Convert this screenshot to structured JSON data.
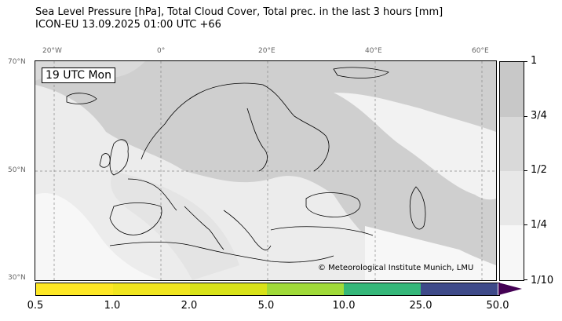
{
  "title": {
    "line1": "Sea Level Pressure [hPa], Total Cloud Cover, Total prec. in the last 3 hours [mm]",
    "line2": "ICON-EU 13.09.2025 01:00 UTC +66"
  },
  "map": {
    "time_label": "19 UTC Mon",
    "credit": "© Meteorological Institute Munich, LMU",
    "lon_labels": [
      "20°W",
      "0°",
      "20°E",
      "40°E",
      "60°E"
    ],
    "lat_labels": [
      "70°N",
      "50°N",
      "30°N"
    ]
  },
  "cloud_colorbar": {
    "labels": [
      "1",
      "3/4",
      "1/2",
      "1/4",
      "1/10"
    ],
    "colors": [
      "#c8c8c8",
      "#d9d9d9",
      "#e8e8e8",
      "#f7f7f7"
    ]
  },
  "precip_colorbar": {
    "labels": [
      "0.5",
      "1.0",
      "2.0",
      "5.0",
      "10.0",
      "25.0",
      "50.0"
    ],
    "colors": [
      "#fde725",
      "#d8e219",
      "#a0da39",
      "#35b779",
      "#3e4a89",
      "#440154"
    ]
  }
}
